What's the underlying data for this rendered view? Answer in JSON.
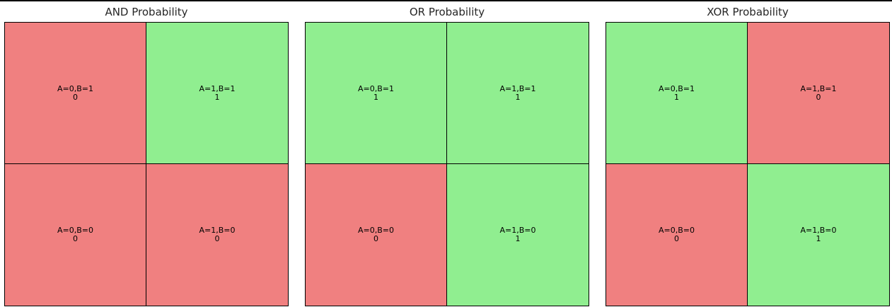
{
  "colors": {
    "true": "#90ee90",
    "false": "#f08080"
  },
  "chart_data": [
    {
      "type": "heatmap",
      "title": "AND Probability",
      "cells": [
        {
          "label": "A=0,B=1",
          "a": 0,
          "b": 1,
          "value": "0"
        },
        {
          "label": "A=1,B=1",
          "a": 1,
          "b": 1,
          "value": "1"
        },
        {
          "label": "A=0,B=0",
          "a": 0,
          "b": 0,
          "value": "0"
        },
        {
          "label": "A=1,B=0",
          "a": 1,
          "b": 0,
          "value": "0"
        }
      ]
    },
    {
      "type": "heatmap",
      "title": "OR Probability",
      "cells": [
        {
          "label": "A=0,B=1",
          "a": 0,
          "b": 1,
          "value": "1"
        },
        {
          "label": "A=1,B=1",
          "a": 1,
          "b": 1,
          "value": "1"
        },
        {
          "label": "A=0,B=0",
          "a": 0,
          "b": 0,
          "value": "0"
        },
        {
          "label": "A=1,B=0",
          "a": 1,
          "b": 0,
          "value": "1"
        }
      ]
    },
    {
      "type": "heatmap",
      "title": "XOR Probability",
      "cells": [
        {
          "label": "A=0,B=1",
          "a": 0,
          "b": 1,
          "value": "1"
        },
        {
          "label": "A=1,B=1",
          "a": 1,
          "b": 1,
          "value": "0"
        },
        {
          "label": "A=0,B=0",
          "a": 0,
          "b": 0,
          "value": "0"
        },
        {
          "label": "A=1,B=0",
          "a": 1,
          "b": 0,
          "value": "1"
        }
      ]
    }
  ]
}
